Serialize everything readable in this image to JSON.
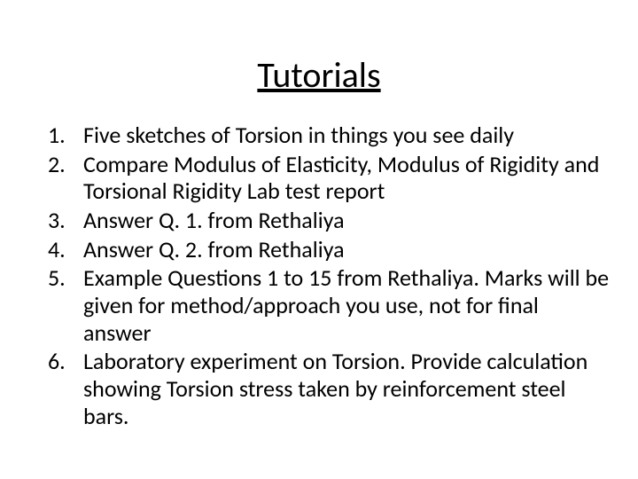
{
  "title": "Tutorials",
  "items": [
    {
      "num": "1.",
      "text": "Five sketches of Torsion in things you see daily"
    },
    {
      "num": "2.",
      "text": "Compare Modulus of Elasticity, Modulus of Rigidity and Torsional Rigidity Lab test report"
    },
    {
      "num": "3.",
      "text": "Answer Q. 1. from Rethaliya"
    },
    {
      "num": "4.",
      "text": "Answer Q. 2. from Rethaliya"
    },
    {
      "num": "5.",
      "text": "Example Questions 1  to 15 from Rethaliya. Marks will be given for method/approach you use, not for final answer"
    },
    {
      "num": "6.",
      "text": "Laboratory experiment on Torsion. Provide calculation showing Torsion stress taken by reinforcement steel bars."
    }
  ],
  "styles": {
    "background_color": "#ffffff",
    "text_color": "#000000",
    "title_fontsize": 40,
    "body_fontsize": 26,
    "font_family": "Calibri",
    "title_underline": true,
    "title_align": "center",
    "line_height": 1.18
  }
}
